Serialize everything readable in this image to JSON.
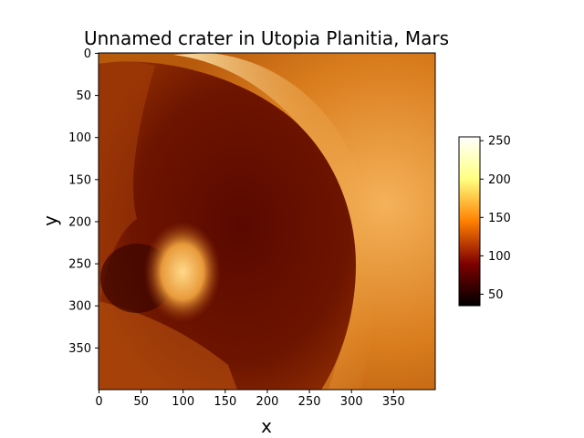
{
  "chart_data": {
    "type": "heatmap",
    "title": "Unnamed crater in Utopia Planitia, Mars",
    "xlabel": "x",
    "ylabel": "y",
    "xlim": [
      0,
      400
    ],
    "ylim": [
      400,
      0
    ],
    "x_ticks": [
      0,
      50,
      100,
      150,
      200,
      250,
      300,
      350
    ],
    "y_ticks": [
      0,
      50,
      100,
      150,
      200,
      250,
      300,
      350
    ],
    "grid": false,
    "colormap": "afmhot",
    "colorbar": {
      "range": [
        35,
        255
      ],
      "ticks": [
        50,
        100,
        150,
        200,
        250
      ]
    },
    "features": [
      {
        "kind": "outer-terrain",
        "description_value": 185
      },
      {
        "kind": "crater-floor",
        "cx": 120,
        "cy": 245,
        "rx": 165,
        "ry": 205,
        "value": 70
      },
      {
        "kind": "bright-rim",
        "side": "east",
        "value": 235
      },
      {
        "kind": "central-bright-peak",
        "cx": 110,
        "cy": 270,
        "value": 200
      },
      {
        "kind": "dark-shadow",
        "cx": 45,
        "cy": 290,
        "value": 60
      }
    ]
  }
}
